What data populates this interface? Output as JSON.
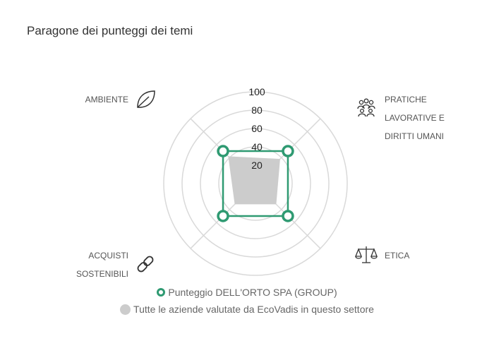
{
  "title": "Paragone dei punteggi dei temi",
  "colors": {
    "company": "#2f9a72",
    "sector": "#cccccc",
    "grid": "#d9d9d9"
  },
  "chart_data": {
    "type": "radar",
    "rmax": 100,
    "ticks": [
      "20",
      "40",
      "60",
      "80",
      "100"
    ],
    "tick_values": [
      20,
      40,
      60,
      80,
      100
    ],
    "categories": [
      {
        "lines": [
          "PRATICHE",
          "LAVORATIVE E",
          "DIRITTI UMANI"
        ],
        "icon": "people-icon"
      },
      {
        "lines": [
          "ETICA"
        ],
        "icon": "scales-icon"
      },
      {
        "lines": [
          "ACQUISTI",
          "SOSTENIBILI"
        ],
        "icon": "chain-icon"
      },
      {
        "lines": [
          "AMBIENTE"
        ],
        "icon": "leaf-icon"
      }
    ],
    "series": [
      {
        "name": "Punteggio DELL'ORTO SPA (GROUP)",
        "values": [
          50,
          50,
          50,
          50
        ]
      },
      {
        "name": "Tutte le aziende valutate da EcoVadis in questo settore",
        "values": [
          38,
          32,
          32,
          42
        ]
      }
    ]
  }
}
